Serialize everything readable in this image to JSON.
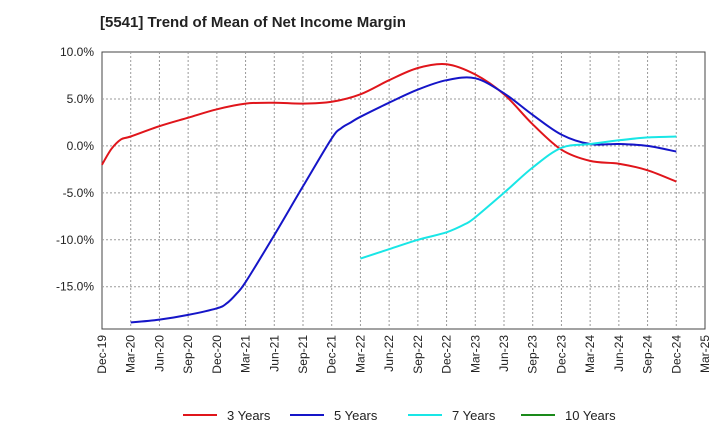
{
  "chart_data": {
    "type": "line",
    "title": "[5541]  Trend of Mean of Net Income Margin",
    "xlabel": "",
    "ylabel": "",
    "ylim": [
      -19.5,
      10.0
    ],
    "y_ticks": [
      {
        "value": 10,
        "label": "10.0%"
      },
      {
        "value": 5,
        "label": "5.0%"
      },
      {
        "value": 0,
        "label": "0.0%"
      },
      {
        "value": -5,
        "label": "-5.0%"
      },
      {
        "value": -10,
        "label": "-10.0%"
      },
      {
        "value": -15,
        "label": "-15.0%"
      }
    ],
    "x_ticks": [
      "Dec-19",
      "Mar-20",
      "Jun-20",
      "Sep-20",
      "Dec-20",
      "Mar-21",
      "Jun-21",
      "Sep-21",
      "Dec-21",
      "Mar-22",
      "Jun-22",
      "Sep-22",
      "Dec-22",
      "Mar-23",
      "Jun-23",
      "Sep-23",
      "Dec-23",
      "Mar-24",
      "Jun-24",
      "Sep-24",
      "Dec-24",
      "Mar-25"
    ],
    "grid": true,
    "legend_position": "bottom",
    "series": [
      {
        "name": "3 Years",
        "color": "#e0151b",
        "points": [
          {
            "x": "Dec-19",
            "y": -2.0
          },
          {
            "x": "Jan-20",
            "y": -0.3
          },
          {
            "x": "Feb-20",
            "y": 0.7
          },
          {
            "x": "Mar-20",
            "y": 1.0
          },
          {
            "x": "Jun-20",
            "y": 2.1
          },
          {
            "x": "Sep-20",
            "y": 3.0
          },
          {
            "x": "Dec-20",
            "y": 3.9
          },
          {
            "x": "Mar-21",
            "y": 4.5
          },
          {
            "x": "Jun-21",
            "y": 4.6
          },
          {
            "x": "Sep-21",
            "y": 4.5
          },
          {
            "x": "Dec-21",
            "y": 4.7
          },
          {
            "x": "Mar-22",
            "y": 5.5
          },
          {
            "x": "Jun-22",
            "y": 7.0
          },
          {
            "x": "Sep-22",
            "y": 8.3
          },
          {
            "x": "Dec-22",
            "y": 8.7
          },
          {
            "x": "Mar-23",
            "y": 7.6
          },
          {
            "x": "Jun-23",
            "y": 5.5
          },
          {
            "x": "Sep-23",
            "y": 2.3
          },
          {
            "x": "Dec-23",
            "y": -0.4
          },
          {
            "x": "Mar-24",
            "y": -1.6
          },
          {
            "x": "Jun-24",
            "y": -1.9
          },
          {
            "x": "Sep-24",
            "y": -2.6
          },
          {
            "x": "Dec-24",
            "y": -3.8
          }
        ]
      },
      {
        "name": "5 Years",
        "color": "#1515c8",
        "points": [
          {
            "x": "Mar-20",
            "y": -18.8
          },
          {
            "x": "Jun-20",
            "y": -18.5
          },
          {
            "x": "Sep-20",
            "y": -18.0
          },
          {
            "x": "Dec-20",
            "y": -17.3
          },
          {
            "x": "Jan-21",
            "y": -16.8
          },
          {
            "x": "Feb-21",
            "y": -15.8
          },
          {
            "x": "Mar-21",
            "y": -14.5
          },
          {
            "x": "Jun-21",
            "y": -9.5
          },
          {
            "x": "Sep-21",
            "y": -4.3
          },
          {
            "x": "Dec-21",
            "y": 0.8
          },
          {
            "x": "Jan-22",
            "y": 1.9
          },
          {
            "x": "Feb-22",
            "y": 2.5
          },
          {
            "x": "Mar-22",
            "y": 3.1
          },
          {
            "x": "Jun-22",
            "y": 4.6
          },
          {
            "x": "Sep-22",
            "y": 6.0
          },
          {
            "x": "Dec-22",
            "y": 7.0
          },
          {
            "x": "Mar-23",
            "y": 7.2
          },
          {
            "x": "Jun-23",
            "y": 5.6
          },
          {
            "x": "Sep-23",
            "y": 3.3
          },
          {
            "x": "Dec-23",
            "y": 1.2
          },
          {
            "x": "Mar-24",
            "y": 0.2
          },
          {
            "x": "Jun-24",
            "y": 0.2
          },
          {
            "x": "Sep-24",
            "y": 0.0
          },
          {
            "x": "Dec-24",
            "y": -0.6
          }
        ]
      },
      {
        "name": "7 Years",
        "color": "#19e6e6",
        "points": [
          {
            "x": "Mar-22",
            "y": -12.0
          },
          {
            "x": "Jun-22",
            "y": -11.0
          },
          {
            "x": "Sep-22",
            "y": -10.0
          },
          {
            "x": "Dec-22",
            "y": -9.2
          },
          {
            "x": "Feb-23",
            "y": -8.3
          },
          {
            "x": "Mar-23",
            "y": -7.6
          },
          {
            "x": "Jun-23",
            "y": -5.0
          },
          {
            "x": "Sep-23",
            "y": -2.3
          },
          {
            "x": "Dec-23",
            "y": -0.2
          },
          {
            "x": "Mar-24",
            "y": 0.2
          },
          {
            "x": "Jun-24",
            "y": 0.6
          },
          {
            "x": "Sep-24",
            "y": 0.9
          },
          {
            "x": "Dec-24",
            "y": 1.0
          }
        ]
      },
      {
        "name": "10 Years",
        "color": "#1a8a1a",
        "points": []
      }
    ]
  }
}
